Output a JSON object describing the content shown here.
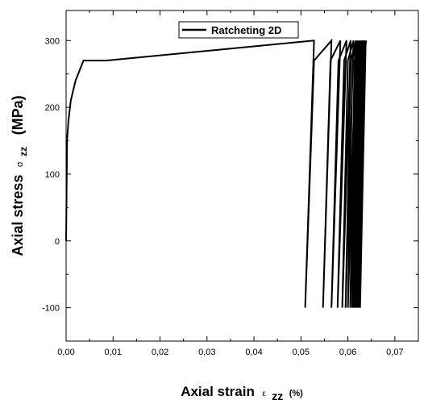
{
  "chart_data": {
    "type": "line",
    "title": "",
    "xlabel": {
      "main": "Axial strain",
      "symbol": "ε",
      "subscript": "zz",
      "unit": "(%)"
    },
    "ylabel": {
      "main": "Axial stress",
      "symbol": "σ",
      "subscript": "zz",
      "unit": "(MPa)"
    },
    "xlim": [
      0.0,
      0.075
    ],
    "ylim": [
      -150,
      345
    ],
    "xticks": [
      0.0,
      0.01,
      0.02,
      0.03,
      0.04,
      0.05,
      0.06,
      0.07
    ],
    "xtick_labels": [
      "0,00",
      "0,01",
      "0,02",
      "0,03",
      "0,04",
      "0,05",
      "0,06",
      "0,07"
    ],
    "yticks": [
      -100,
      0,
      100,
      200,
      300
    ],
    "ytick_labels": [
      "-100",
      "0",
      "100",
      "200",
      "300"
    ],
    "grid": false,
    "legend": {
      "position": "top-center",
      "entries": [
        "Ratcheting 2D"
      ]
    },
    "series": [
      {
        "name": "Ratcheting 2D",
        "color": "#000000",
        "x": [
          0.0,
          0.0002,
          0.0005,
          0.001,
          0.002,
          0.0037,
          0.0085,
          0.0528,
          0.0509,
          0.0528,
          0.0565,
          0.0547,
          0.0563,
          0.0584,
          0.0565,
          0.058,
          0.0597,
          0.0578,
          0.0592,
          0.0606,
          0.0588,
          0.06,
          0.0612,
          0.0595,
          0.0606,
          0.0617,
          0.06,
          0.061,
          0.062,
          0.0605,
          0.0614,
          0.0623,
          0.0609,
          0.0617,
          0.0626,
          0.0612,
          0.062,
          0.0629,
          0.0615,
          0.0623,
          0.0631,
          0.0618,
          0.0625,
          0.0633,
          0.062,
          0.0627,
          0.0635,
          0.0622,
          0.063,
          0.0637,
          0.0624,
          0.0632,
          0.0638,
          0.0626,
          0.0633,
          0.0639
        ],
        "y": [
          0,
          150,
          180,
          210,
          240,
          270,
          270,
          300,
          -100,
          270,
          300,
          -100,
          270,
          300,
          -100,
          270,
          300,
          -100,
          270,
          300,
          -100,
          270,
          300,
          -100,
          270,
          300,
          -100,
          270,
          300,
          -100,
          270,
          300,
          -100,
          270,
          300,
          -100,
          270,
          300,
          -100,
          270,
          300,
          -100,
          270,
          300,
          -100,
          270,
          300,
          -100,
          270,
          300,
          -100,
          270,
          300,
          -100,
          270,
          300
        ]
      }
    ]
  }
}
